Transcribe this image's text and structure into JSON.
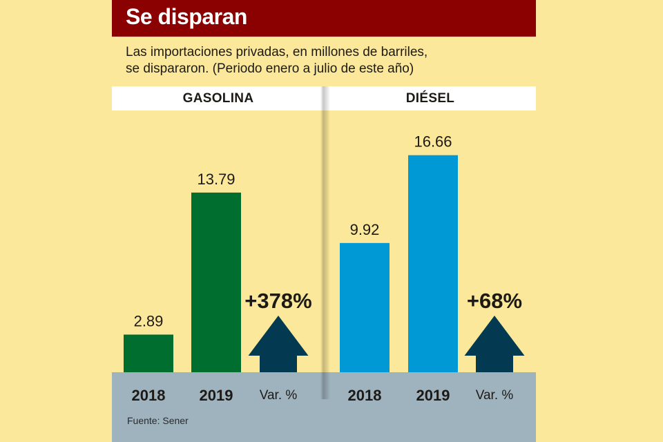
{
  "header": {
    "title": "Se disparan",
    "subtitle_lines": [
      "Las importaciones privadas, en millones de barriles,",
      "se dispararon. (Periodo enero a julio de este año)"
    ]
  },
  "source": "Fuente: Sener",
  "colors": {
    "title_bar": "#8b0000",
    "background": "#fbe89a",
    "gasolina": "#006e2e",
    "diesel": "#0099d5",
    "arrow": "#033a52",
    "footer_band": "#9fb3bf"
  },
  "chart_data": [
    {
      "type": "bar",
      "title": "GASOLINA",
      "categories": [
        "2018",
        "2019"
      ],
      "values": [
        2.89,
        13.79
      ],
      "value_labels": [
        "2.89",
        "13.79"
      ],
      "variation_label": "Var. %",
      "variation": "+378%",
      "unit": "millones de barriles",
      "ylim": [
        0,
        18.5
      ],
      "grid": false,
      "color": "#006e2e"
    },
    {
      "type": "bar",
      "title": "DIÉSEL",
      "categories": [
        "2018",
        "2019"
      ],
      "values": [
        9.92,
        16.66
      ],
      "value_labels": [
        "9.92",
        "16.66"
      ],
      "variation_label": "Var. %",
      "variation": "+68%",
      "unit": "millones de barriles",
      "ylim": [
        0,
        18.5
      ],
      "grid": false,
      "color": "#0099d5"
    }
  ]
}
